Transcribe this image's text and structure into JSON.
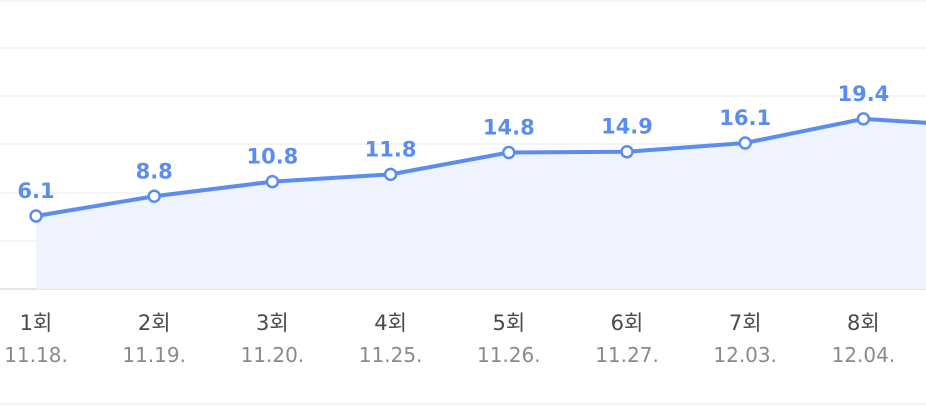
{
  "colors": {
    "line": "#5b8def",
    "label": "#5b8def",
    "fill": "#eef3fd",
    "grid": "#eef0f2",
    "axis": "#e4e6e9",
    "point_fill": "#ffffff"
  },
  "chart_data": {
    "type": "line",
    "categories": [
      "1회",
      "2회",
      "3회",
      "4회",
      "5회",
      "6회",
      "7회",
      "8회"
    ],
    "dates": [
      "11.18.",
      "11.19.",
      "11.20.",
      "11.25.",
      "11.26.",
      "11.27.",
      "12.03.",
      "12.04."
    ],
    "values": [
      6.1,
      8.8,
      10.8,
      11.8,
      14.8,
      14.9,
      16.1,
      19.4
    ],
    "value_labels": [
      "6.1",
      "8.8",
      "10.8",
      "11.8",
      "14.8",
      "14.9",
      "16.1",
      "19.4"
    ],
    "title": "",
    "xlabel": "",
    "ylabel": "",
    "grid": true,
    "area_fill": true,
    "continues_past_right_edge": true
  }
}
